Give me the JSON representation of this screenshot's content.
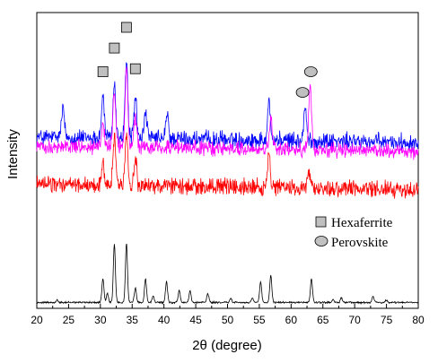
{
  "chart_data": {
    "type": "line",
    "xlabel": "2θ (degree)",
    "ylabel": "Intensity",
    "xlim": [
      20,
      80
    ],
    "ylim": [
      0,
      100
    ],
    "x_ticks": [
      20,
      25,
      30,
      35,
      40,
      45,
      50,
      55,
      60,
      65,
      70,
      75,
      80
    ],
    "grid": false,
    "legend": {
      "placement": "right-middle",
      "entries": [
        {
          "label": "Hexaferrite",
          "marker": "square",
          "color": "#c0c0c0"
        },
        {
          "label": "Perovskite",
          "marker": "ellipse",
          "color": "#c0c0c0"
        }
      ]
    },
    "series": [
      {
        "color": "#0000ff",
        "baseline": 57,
        "noise": 3.5,
        "peaks": [
          [
            24.1,
            10
          ],
          [
            30.4,
            14
          ],
          [
            32.2,
            18
          ],
          [
            34.1,
            26
          ],
          [
            35.5,
            14
          ],
          [
            37.1,
            9
          ],
          [
            40.5,
            8
          ],
          [
            56.5,
            14
          ],
          [
            62.2,
            11
          ]
        ]
      },
      {
        "color": "#ff00ff",
        "baseline": 54,
        "noise": 3,
        "peaks": [
          [
            30.4,
            8
          ],
          [
            32.2,
            18
          ],
          [
            34.1,
            26
          ],
          [
            35.5,
            10
          ],
          [
            56.8,
            10
          ],
          [
            63.0,
            22
          ]
        ]
      },
      {
        "color": "#ff0000",
        "baseline": 41,
        "noise": 3.5,
        "peaks": [
          [
            30.4,
            8
          ],
          [
            32.2,
            17
          ],
          [
            34.1,
            18
          ],
          [
            35.5,
            9
          ],
          [
            56.5,
            10
          ],
          [
            62.8,
            6
          ]
        ]
      },
      {
        "color": "#000000",
        "baseline": 2,
        "noise": 0.4,
        "peaks": [
          [
            23.2,
            0.8
          ],
          [
            30.4,
            8
          ],
          [
            31.1,
            3
          ],
          [
            32.2,
            20
          ],
          [
            34.1,
            20
          ],
          [
            35.5,
            5
          ],
          [
            37.1,
            8
          ],
          [
            38.3,
            2
          ],
          [
            40.4,
            7
          ],
          [
            42.4,
            4
          ],
          [
            44.1,
            4
          ],
          [
            46.9,
            3
          ],
          [
            50.5,
            1.2
          ],
          [
            53.9,
            1.5
          ],
          [
            55.2,
            7
          ],
          [
            56.8,
            9
          ],
          [
            63.2,
            8
          ],
          [
            66.6,
            1
          ],
          [
            67.9,
            1.5
          ],
          [
            72.9,
            2
          ],
          [
            75.0,
            0.8
          ]
        ]
      }
    ],
    "annotations": [
      {
        "shape": "square",
        "phase": "Hexaferrite",
        "x": 30.4,
        "y": 80
      },
      {
        "shape": "square",
        "phase": "Hexaferrite",
        "x": 32.2,
        "y": 88
      },
      {
        "shape": "square",
        "phase": "Hexaferrite",
        "x": 34.1,
        "y": 95
      },
      {
        "shape": "square",
        "phase": "Hexaferrite",
        "x": 35.5,
        "y": 81
      },
      {
        "shape": "ellipse",
        "phase": "Perovskite",
        "x": 61.8,
        "y": 73
      },
      {
        "shape": "ellipse",
        "phase": "Perovskite",
        "x": 63.1,
        "y": 80
      }
    ]
  }
}
